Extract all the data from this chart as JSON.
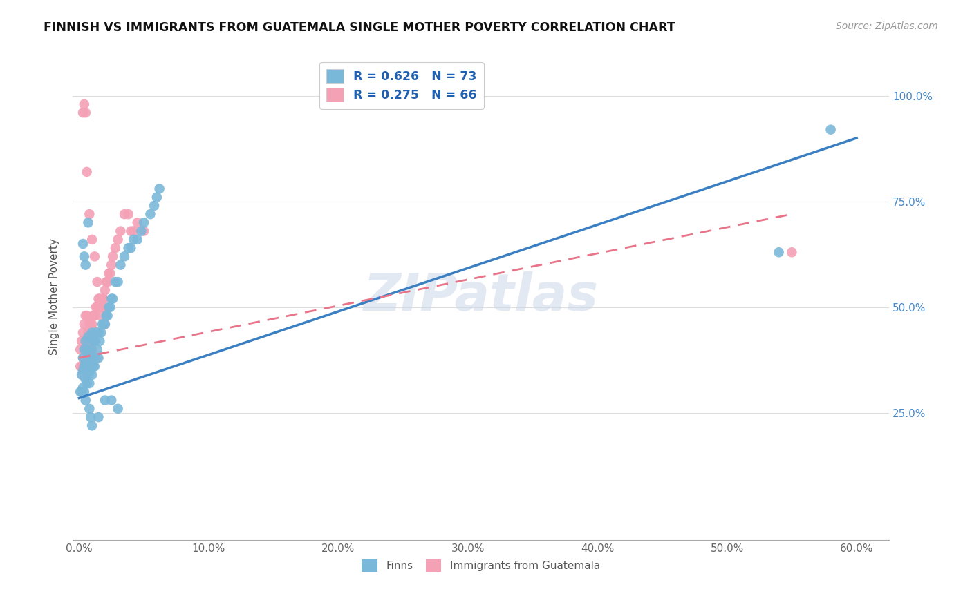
{
  "title": "FINNISH VS IMMIGRANTS FROM GUATEMALA SINGLE MOTHER POVERTY CORRELATION CHART",
  "source": "Source: ZipAtlas.com",
  "xlabel_ticks": [
    "0.0%",
    "10.0%",
    "20.0%",
    "30.0%",
    "40.0%",
    "50.0%",
    "60.0%"
  ],
  "xlabel_vals": [
    0.0,
    0.1,
    0.2,
    0.3,
    0.4,
    0.5,
    0.6
  ],
  "ylabel_ticks": [
    "25.0%",
    "50.0%",
    "75.0%",
    "100.0%"
  ],
  "ylabel_vals": [
    0.25,
    0.5,
    0.75,
    1.0
  ],
  "xlim": [
    -0.005,
    0.625
  ],
  "ylim": [
    -0.05,
    1.1
  ],
  "watermark": "ZIPatlas",
  "blue_color": "#7ab8d9",
  "pink_color": "#f4a0b5",
  "blue_line_color": "#3a7fc1",
  "pink_line_color": "#e8748a",
  "legend_text_color": "#2060b0",
  "title_fontsize": 12.5,
  "source_fontsize": 10,
  "blue_scatter_x": [
    0.001,
    0.002,
    0.002,
    0.003,
    0.003,
    0.003,
    0.004,
    0.004,
    0.004,
    0.005,
    0.005,
    0.005,
    0.005,
    0.006,
    0.006,
    0.006,
    0.007,
    0.007,
    0.007,
    0.008,
    0.008,
    0.009,
    0.009,
    0.01,
    0.01,
    0.01,
    0.011,
    0.011,
    0.012,
    0.012,
    0.013,
    0.013,
    0.014,
    0.015,
    0.015,
    0.016,
    0.017,
    0.018,
    0.019,
    0.02,
    0.021,
    0.022,
    0.023,
    0.024,
    0.025,
    0.026,
    0.028,
    0.03,
    0.032,
    0.035,
    0.038,
    0.04,
    0.042,
    0.045,
    0.048,
    0.05,
    0.055,
    0.058,
    0.06,
    0.062,
    0.003,
    0.004,
    0.005,
    0.007,
    0.008,
    0.009,
    0.01,
    0.015,
    0.02,
    0.025,
    0.03,
    0.54,
    0.58
  ],
  "blue_scatter_y": [
    0.3,
    0.3,
    0.34,
    0.31,
    0.35,
    0.38,
    0.3,
    0.36,
    0.4,
    0.28,
    0.33,
    0.37,
    0.42,
    0.32,
    0.36,
    0.4,
    0.34,
    0.38,
    0.43,
    0.32,
    0.38,
    0.35,
    0.4,
    0.34,
    0.38,
    0.44,
    0.36,
    0.42,
    0.36,
    0.42,
    0.38,
    0.44,
    0.4,
    0.38,
    0.44,
    0.42,
    0.44,
    0.46,
    0.46,
    0.46,
    0.48,
    0.48,
    0.5,
    0.5,
    0.52,
    0.52,
    0.56,
    0.56,
    0.6,
    0.62,
    0.64,
    0.64,
    0.66,
    0.66,
    0.68,
    0.7,
    0.72,
    0.74,
    0.76,
    0.78,
    0.65,
    0.62,
    0.6,
    0.7,
    0.26,
    0.24,
    0.22,
    0.24,
    0.28,
    0.28,
    0.26,
    0.63,
    0.92
  ],
  "pink_scatter_x": [
    0.001,
    0.001,
    0.002,
    0.002,
    0.003,
    0.003,
    0.003,
    0.004,
    0.004,
    0.004,
    0.005,
    0.005,
    0.005,
    0.006,
    0.006,
    0.006,
    0.007,
    0.007,
    0.008,
    0.008,
    0.009,
    0.009,
    0.01,
    0.01,
    0.011,
    0.011,
    0.012,
    0.012,
    0.013,
    0.013,
    0.014,
    0.014,
    0.015,
    0.015,
    0.016,
    0.017,
    0.018,
    0.019,
    0.02,
    0.021,
    0.022,
    0.023,
    0.024,
    0.025,
    0.026,
    0.028,
    0.03,
    0.032,
    0.035,
    0.038,
    0.04,
    0.042,
    0.045,
    0.05,
    0.003,
    0.004,
    0.005,
    0.006,
    0.008,
    0.01,
    0.012,
    0.014,
    0.016,
    0.018,
    0.02,
    0.55
  ],
  "pink_scatter_y": [
    0.36,
    0.4,
    0.36,
    0.42,
    0.34,
    0.38,
    0.44,
    0.34,
    0.4,
    0.46,
    0.36,
    0.42,
    0.48,
    0.36,
    0.42,
    0.48,
    0.38,
    0.44,
    0.38,
    0.46,
    0.4,
    0.46,
    0.4,
    0.46,
    0.42,
    0.48,
    0.42,
    0.48,
    0.44,
    0.5,
    0.44,
    0.5,
    0.44,
    0.52,
    0.48,
    0.5,
    0.52,
    0.52,
    0.54,
    0.56,
    0.56,
    0.58,
    0.58,
    0.6,
    0.62,
    0.64,
    0.66,
    0.68,
    0.72,
    0.72,
    0.68,
    0.68,
    0.7,
    0.68,
    0.96,
    0.98,
    0.96,
    0.82,
    0.72,
    0.66,
    0.62,
    0.56,
    0.52,
    0.5,
    0.46,
    0.63
  ],
  "blue_line": {
    "x0": 0.0,
    "x1": 0.6,
    "y0": 0.285,
    "y1": 0.9
  },
  "pink_line": {
    "x0": 0.0,
    "x1": 0.55,
    "y0": 0.38,
    "y1": 0.72
  },
  "ylabel": "Single Mother Poverty",
  "legend1_label1": "R = 0.626   N = 73",
  "legend1_label2": "R = 0.275   N = 66",
  "bottom_label1": "Finns",
  "bottom_label2": "Immigrants from Guatemala"
}
